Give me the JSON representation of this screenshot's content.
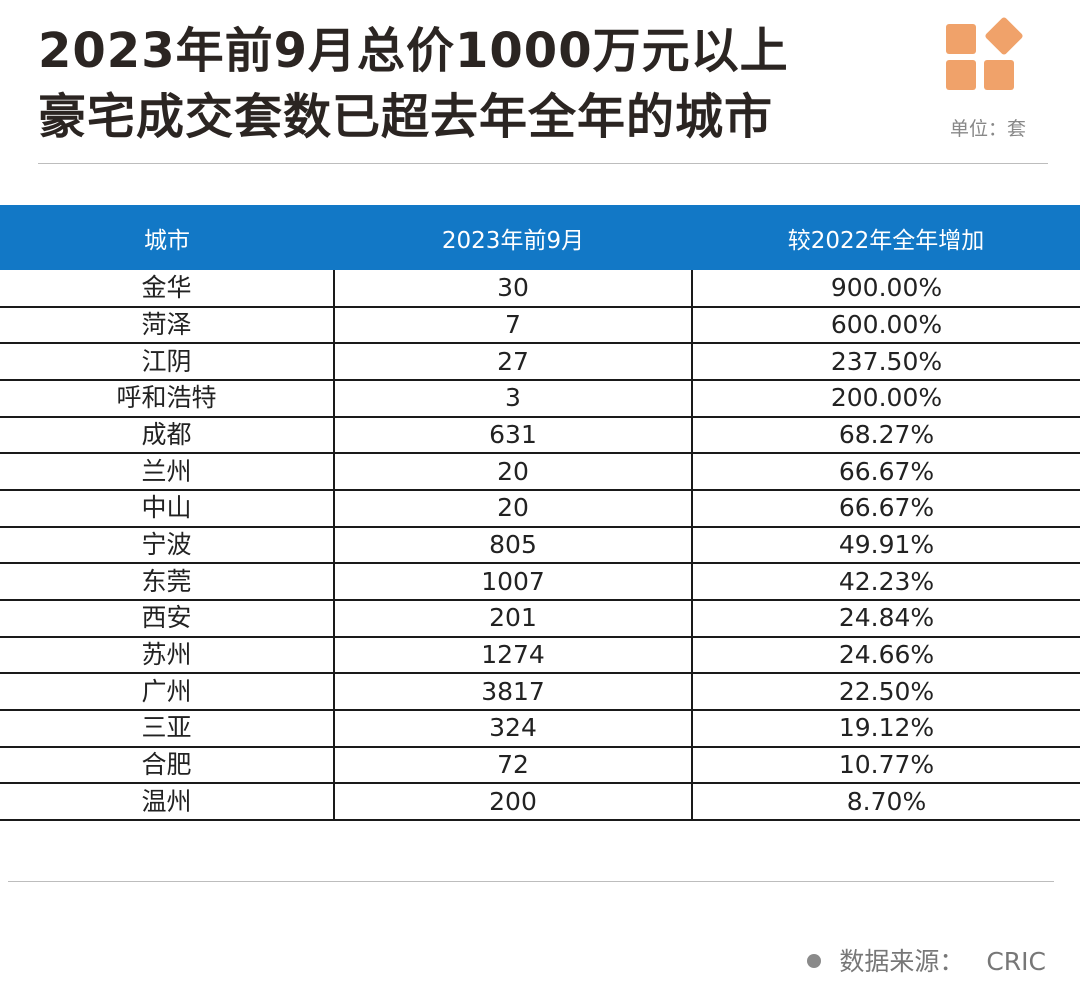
{
  "header": {
    "title_line1": "2023年前9月总价1000万元以上",
    "title_line2": "豪宅成交套数已超去年全年的城市",
    "unit": "单位：套"
  },
  "brand_color": "#f0a26a",
  "header_color": "#1278c6",
  "table": {
    "columns": [
      "城市",
      "2023年前9月",
      "较2022年全年增加"
    ],
    "rows": [
      {
        "city": "金华",
        "count": "30",
        "increase": "900.00%"
      },
      {
        "city": "菏泽",
        "count": "7",
        "increase": "600.00%"
      },
      {
        "city": "江阴",
        "count": "27",
        "increase": "237.50%"
      },
      {
        "city": "呼和浩特",
        "count": "3",
        "increase": "200.00%"
      },
      {
        "city": "成都",
        "count": "631",
        "increase": "68.27%"
      },
      {
        "city": "兰州",
        "count": "20",
        "increase": "66.67%"
      },
      {
        "city": "中山",
        "count": "20",
        "increase": "66.67%"
      },
      {
        "city": "宁波",
        "count": "805",
        "increase": "49.91%"
      },
      {
        "city": "东莞",
        "count": "1007",
        "increase": "42.23%"
      },
      {
        "city": "西安",
        "count": "201",
        "increase": "24.84%"
      },
      {
        "city": "苏州",
        "count": "1274",
        "increase": "24.66%"
      },
      {
        "city": "广州",
        "count": "3817",
        "increase": "22.50%"
      },
      {
        "city": "三亚",
        "count": "324",
        "increase": "19.12%"
      },
      {
        "city": "合肥",
        "count": "72",
        "increase": "10.77%"
      },
      {
        "city": "温州",
        "count": "200",
        "increase": "8.70%"
      }
    ]
  },
  "footer": {
    "source_label": "数据来源：",
    "source_value": "CRIC"
  }
}
